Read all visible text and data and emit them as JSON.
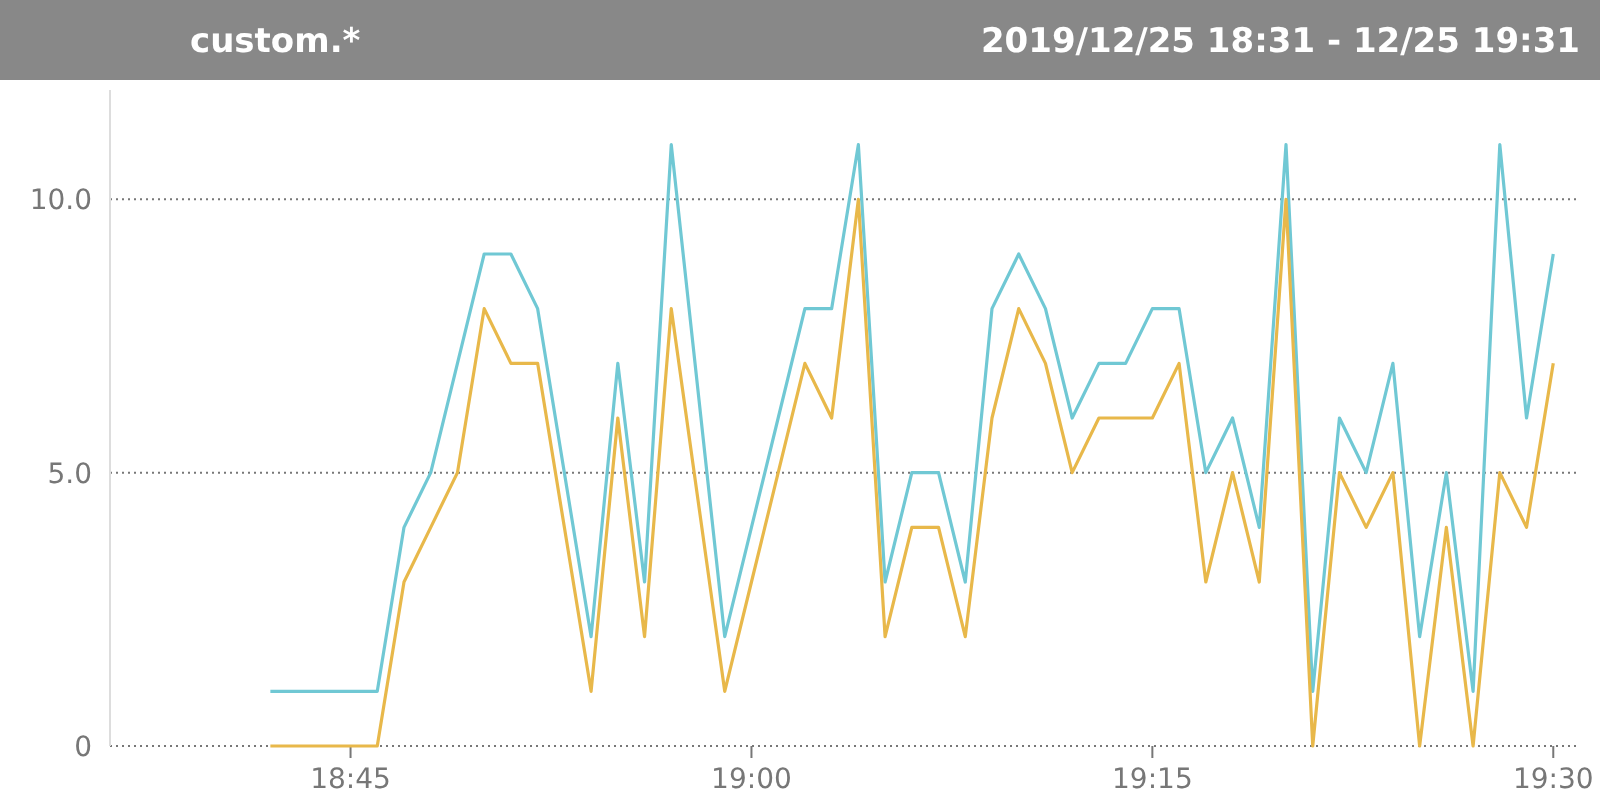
{
  "chart_data": {
    "type": "line",
    "title": "custom.*",
    "subtitle": "2019/12/25 18:31 - 12/25 19:31",
    "x": [
      "2019-12-25T18:42",
      "2019-12-25T18:43",
      "2019-12-25T18:44",
      "2019-12-25T18:45",
      "2019-12-25T18:46",
      "2019-12-25T18:47",
      "2019-12-25T18:48",
      "2019-12-25T18:49",
      "2019-12-25T18:50",
      "2019-12-25T18:51",
      "2019-12-25T18:52",
      "2019-12-25T18:53",
      "2019-12-25T18:54",
      "2019-12-25T18:55",
      "2019-12-25T18:56",
      "2019-12-25T18:57",
      "2019-12-25T18:59",
      "2019-12-25T19:00",
      "2019-12-25T19:01",
      "2019-12-25T19:02",
      "2019-12-25T19:03",
      "2019-12-25T19:04",
      "2019-12-25T19:05",
      "2019-12-25T19:06",
      "2019-12-25T19:07",
      "2019-12-25T19:08",
      "2019-12-25T19:09",
      "2019-12-25T19:10",
      "2019-12-25T19:11",
      "2019-12-25T19:12",
      "2019-12-25T19:13",
      "2019-12-25T19:14",
      "2019-12-25T19:15",
      "2019-12-25T19:16",
      "2019-12-25T19:17",
      "2019-12-25T19:18",
      "2019-12-25T19:19",
      "2019-12-25T19:20",
      "2019-12-25T19:21",
      "2019-12-25T19:22",
      "2019-12-25T19:23",
      "2019-12-25T19:24",
      "2019-12-25T19:25",
      "2019-12-25T19:26",
      "2019-12-25T19:27",
      "2019-12-25T19:28",
      "2019-12-25T19:29",
      "2019-12-25T19:30"
    ],
    "series": [
      {
        "color": "#70c8d4",
        "values": [
          1,
          1,
          1,
          1,
          1,
          4,
          5,
          7,
          9,
          9,
          8,
          5,
          2,
          7,
          3,
          11,
          2,
          4,
          6,
          8,
          8,
          11,
          3,
          5,
          5,
          3,
          8,
          9,
          8,
          6,
          7,
          7,
          8,
          8,
          5,
          6,
          4,
          11,
          1,
          6,
          5,
          7,
          2,
          5,
          1,
          11,
          6,
          9
        ]
      },
      {
        "color": "#e8b84a",
        "values": [
          0,
          0,
          0,
          0,
          0,
          3,
          4,
          5,
          8,
          7,
          7,
          4,
          1,
          6,
          2,
          8,
          1,
          3,
          5,
          7,
          6,
          10,
          2,
          4,
          4,
          2,
          6,
          8,
          7,
          5,
          6,
          6,
          6,
          7,
          3,
          5,
          3,
          10,
          0,
          5,
          4,
          5,
          0,
          4,
          0,
          5,
          4,
          7
        ]
      }
    ],
    "xlim": [
      "2019-12-25T18:36",
      "2019-12-25T19:31"
    ],
    "xticks": [
      {
        "value": "2019-12-25T18:45",
        "label": "18:45"
      },
      {
        "value": "2019-12-25T19:00",
        "label": "19:00"
      },
      {
        "value": "2019-12-25T19:15",
        "label": "19:15"
      },
      {
        "value": "2019-12-25T19:30",
        "label": "19:30"
      }
    ],
    "yticks": [
      0,
      {
        "value": 5,
        "label": "5.0"
      },
      {
        "value": 10,
        "label": "10.0"
      }
    ],
    "ylim": [
      0,
      12
    ],
    "grid": "y",
    "marker": "none",
    "line_style": "solid"
  }
}
